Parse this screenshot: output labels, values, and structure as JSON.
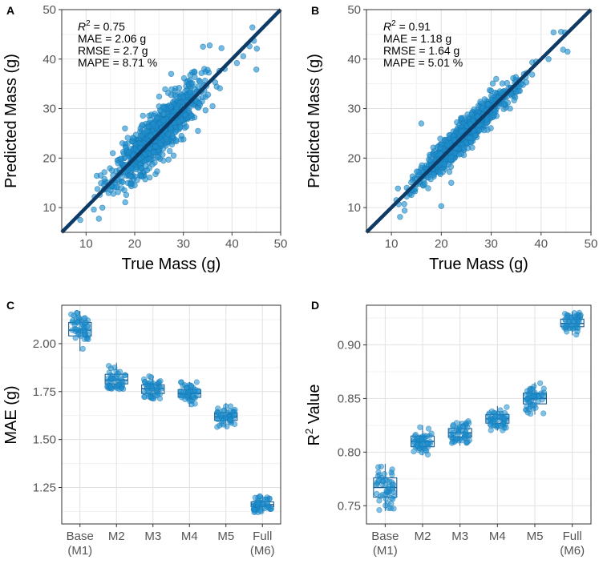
{
  "chart_data": [
    {
      "panel": "A",
      "type": "scatter",
      "xlabel": "True Mass (g)",
      "ylabel": "Predicted Mass (g)",
      "xlim": [
        5,
        50
      ],
      "ylim": [
        5,
        50
      ],
      "xticks": [
        "10",
        "20",
        "30",
        "40",
        "50"
      ],
      "yticks": [
        "10",
        "20",
        "30",
        "40",
        "50"
      ],
      "identity_line": true,
      "annotations": {
        "r2_label": "R",
        "r2_sup": "2",
        "r2_value": " = 0.75",
        "mae": "MAE = 2.06 g",
        "rmse": "RMSE = 2.7 g",
        "mape": "MAPE = 8.71 %"
      },
      "cloud": {
        "n": 900,
        "x_mean": 24.5,
        "x_sd": 4.6,
        "residual_sd": 2.45,
        "seed": 11
      },
      "points": [
        [
          8.8,
          7.5
        ],
        [
          11.6,
          9.6
        ],
        [
          45.0,
          37.9
        ],
        [
          44.2,
          46.4
        ],
        [
          43.6,
          42.6
        ],
        [
          45.1,
          42.1
        ],
        [
          42.3,
          40.6
        ],
        [
          44.5,
          43.7
        ],
        [
          41.0,
          39.2
        ],
        [
          38.5,
          38.0
        ],
        [
          15.5,
          21.0
        ],
        [
          20.0,
          14.5
        ],
        [
          28.0,
          20.5
        ],
        [
          27.5,
          37.0
        ],
        [
          33.0,
          25.5
        ],
        [
          18.0,
          26.0
        ],
        [
          36.0,
          30.5
        ],
        [
          13.0,
          16.5
        ]
      ]
    },
    {
      "panel": "B",
      "type": "scatter",
      "xlabel": "True Mass (g)",
      "ylabel": "Predicted Mass (g)",
      "xlim": [
        5,
        50
      ],
      "ylim": [
        5,
        50
      ],
      "xticks": [
        "10",
        "20",
        "30",
        "40",
        "50"
      ],
      "yticks": [
        "10",
        "20",
        "30",
        "40",
        "50"
      ],
      "identity_line": true,
      "annotations": {
        "r2_label": "R",
        "r2_sup": "2",
        "r2_value": " = 0.91",
        "mae": "MAE = 1.18 g",
        "rmse": "RMSE = 1.64 g",
        "mape": "MAPE = 5.01 %"
      },
      "cloud": {
        "n": 900,
        "x_mean": 24.5,
        "x_sd": 4.6,
        "residual_sd": 1.45,
        "seed": 23
      },
      "points": [
        [
          11.0,
          11.5
        ],
        [
          20.0,
          10.3
        ],
        [
          16.0,
          27.0
        ],
        [
          45.3,
          41.5
        ],
        [
          44.0,
          45.5
        ],
        [
          44.8,
          45.4
        ],
        [
          44.4,
          41.9
        ],
        [
          42.5,
          45.4
        ],
        [
          41.5,
          40.0
        ],
        [
          39.0,
          39.5
        ],
        [
          36.0,
          35.0
        ],
        [
          14.0,
          13.5
        ],
        [
          22.0,
          15.0
        ],
        [
          31.0,
          36.0
        ]
      ]
    },
    {
      "panel": "C",
      "type": "box",
      "ylabel": "MAE (g)",
      "ylim": [
        1.06,
        2.2
      ],
      "yticks": [
        1.25,
        1.5,
        1.75,
        2.0
      ],
      "ytick_labels": [
        "1.25",
        "1.50",
        "1.75",
        "2.00"
      ],
      "categories": [
        "Base\n(M1)",
        "M2",
        "M3",
        "M4",
        "M5",
        "Full\n(M6)"
      ],
      "boxes": [
        {
          "min": 1.96,
          "q1": 2.04,
          "median": 2.07,
          "q3": 2.11,
          "max": 2.17
        },
        {
          "min": 1.76,
          "q1": 1.79,
          "median": 1.81,
          "q3": 1.84,
          "max": 1.9
        },
        {
          "min": 1.71,
          "q1": 1.74,
          "median": 1.765,
          "q3": 1.785,
          "max": 1.83
        },
        {
          "min": 1.67,
          "q1": 1.72,
          "median": 1.74,
          "q3": 1.76,
          "max": 1.8
        },
        {
          "min": 1.56,
          "q1": 1.6,
          "median": 1.62,
          "q3": 1.64,
          "max": 1.69
        },
        {
          "min": 1.12,
          "q1": 1.15,
          "median": 1.16,
          "q3": 1.175,
          "max": 1.21
        }
      ],
      "points_per_group": 50,
      "seed": 5
    },
    {
      "panel": "D",
      "type": "box",
      "ylabel": "R",
      "ylabel_sup": "2",
      "ylabel_rest": " Value",
      "ylim": [
        0.733,
        0.937
      ],
      "yticks": [
        0.75,
        0.8,
        0.85,
        0.9
      ],
      "ytick_labels": [
        "0.75",
        "0.80",
        "0.85",
        "0.90"
      ],
      "categories": [
        "Base\n(M1)",
        "M2",
        "M3",
        "M4",
        "M5",
        "Full\n(M6)"
      ],
      "boxes": [
        {
          "min": 0.745,
          "q1": 0.758,
          "median": 0.767,
          "q3": 0.776,
          "max": 0.789
        },
        {
          "min": 0.797,
          "q1": 0.805,
          "median": 0.81,
          "q3": 0.815,
          "max": 0.825
        },
        {
          "min": 0.806,
          "q1": 0.814,
          "median": 0.818,
          "q3": 0.822,
          "max": 0.829
        },
        {
          "min": 0.82,
          "q1": 0.827,
          "median": 0.831,
          "q3": 0.835,
          "max": 0.843
        },
        {
          "min": 0.835,
          "q1": 0.845,
          "median": 0.85,
          "q3": 0.855,
          "max": 0.865
        },
        {
          "min": 0.909,
          "q1": 0.917,
          "median": 0.92,
          "q3": 0.924,
          "max": 0.931
        }
      ],
      "points_per_group": 50,
      "seed": 9
    }
  ],
  "panel_labels": [
    "A",
    "B",
    "C",
    "D"
  ],
  "colors": {
    "point": "#1e8fcf",
    "point_edge": "#1573ad",
    "identity_line": "#0e3a66",
    "box": "#1a5a8e",
    "grid_major": "#e1e1e1",
    "grid_minor": "#f1f1f1",
    "frame": "#333333",
    "tick_text": "#555555"
  }
}
